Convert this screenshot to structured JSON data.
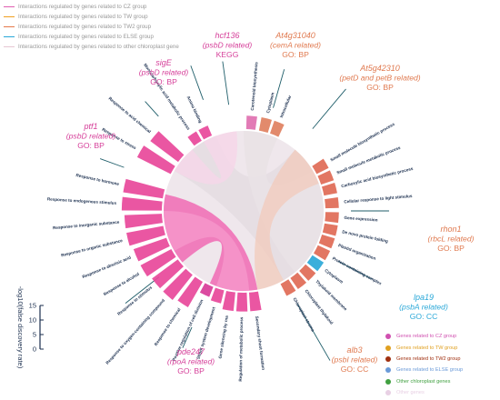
{
  "legend_top": [
    {
      "label": "Interactions regulated by genes related to CZ group",
      "color": "#e05fb0"
    },
    {
      "label": "Interactions regulated by genes related to TW group",
      "color": "#f0a020"
    },
    {
      "label": "Interactions regulated by genes related to TW2 group",
      "color": "#e5784a"
    },
    {
      "label": "Interactions regulated by genes related to ELSE group",
      "color": "#2aa8d8"
    },
    {
      "label": "Interactions regulated by genes related to other chloroplast gene",
      "color": "#e6c6d2"
    }
  ],
  "legend_br": [
    {
      "label": "Genes related to CZ group",
      "color": "#d050b0"
    },
    {
      "label": "Genes related to TW group",
      "color": "#e0a020"
    },
    {
      "label": "Genes related to TW2 group",
      "color": "#a03010"
    },
    {
      "label": "Genes related to ELSE group",
      "color": "#6a9ad8"
    },
    {
      "label": "Other chloroplast genes",
      "color": "#40a040"
    },
    {
      "label": "Other genes",
      "color": "#e8d0e4"
    }
  ],
  "scale": {
    "label": "-log10(false discovery rate)",
    "ticks": [
      "15",
      "10",
      "5",
      "0"
    ]
  },
  "genes": [
    {
      "name": "hcf136",
      "lines": [
        "(psbD related)",
        "KEGG"
      ],
      "color": "#d6409a"
    },
    {
      "name": "At4g31040",
      "lines": [
        "(cemA related)",
        "GO: BP"
      ],
      "color": "#e07a50"
    },
    {
      "name": "At5g42310",
      "lines": [
        "(petD and petB related)",
        "GO: BP"
      ],
      "color": "#e07a50"
    },
    {
      "name": "sigE",
      "lines": [
        "(psbD related)",
        "GO: BP"
      ],
      "color": "#d6409a"
    },
    {
      "name": "ptf1",
      "lines": [
        "(psbD related)",
        "GO: BP"
      ],
      "color": "#d6409a"
    },
    {
      "name": "rhon1",
      "lines": [
        "(rbcL related)",
        "GO: BP"
      ],
      "color": "#e07a50"
    },
    {
      "name": "lpa19",
      "lines": [
        "(psbA related)",
        "GO: CC"
      ],
      "color": "#2aa8d8"
    },
    {
      "name": "alb3",
      "lines": [
        "(psbI related)",
        "GO: CC"
      ],
      "color": "#e07a50"
    },
    {
      "name": "pde247",
      "lines": [
        "(rpoA related)",
        "GO: BP"
      ],
      "color": "#d6409a"
    }
  ],
  "terms": [
    {
      "label": "Response to hormone",
      "value": 13,
      "color": "#e8489a"
    },
    {
      "label": "Response to endogenous stimulus",
      "value": 13,
      "color": "#e8489a"
    },
    {
      "label": "Response to inorganic substance",
      "value": 12,
      "color": "#e8489a"
    },
    {
      "label": "Response to organic substance",
      "value": 12,
      "color": "#e8489a"
    },
    {
      "label": "Response to abscisic acid",
      "value": 11,
      "color": "#e8489a"
    },
    {
      "label": "Response to alcohol",
      "value": 11,
      "color": "#e8489a"
    },
    {
      "label": "Response to stimulus",
      "value": 10,
      "color": "#e8489a"
    },
    {
      "label": "Response to oxygen-containing compound",
      "value": 10,
      "color": "#e8489a"
    },
    {
      "label": "Response to chemical",
      "value": 9,
      "color": "#e8489a"
    },
    {
      "label": "Positive regulation of cell division",
      "value": 2,
      "color": "#d83c98"
    },
    {
      "label": "Shoot system development",
      "value": 3,
      "color": "#e8489a"
    },
    {
      "label": "Gene silencing by rna",
      "value": 5,
      "color": "#e8489a"
    },
    {
      "label": "Regulation of metabolic process",
      "value": 5,
      "color": "#e8489a"
    },
    {
      "label": "Secondary shoot formation",
      "value": 5,
      "color": "#e8489a"
    },
    {
      "label": "Chloroplast stroma",
      "value": 3,
      "color": "#e06a55"
    },
    {
      "label": "Chloroplast thylakoid",
      "value": 3,
      "color": "#e06a55"
    },
    {
      "label": "Thylakoid membrane",
      "value": 3,
      "color": "#e06a55"
    },
    {
      "label": "Cytoplasm",
      "value": 3,
      "color": "#2aa8d8"
    },
    {
      "label": "Protein-containing complex",
      "value": 3,
      "color": "#e06a55"
    },
    {
      "label": "Plastid organization",
      "value": 3,
      "color": "#e06a55"
    },
    {
      "label": "De novo protein folding",
      "value": 3,
      "color": "#e06a55"
    },
    {
      "label": "Gene expression",
      "value": 3,
      "color": "#e06a55"
    },
    {
      "label": "Cellular response to light stimulus",
      "value": 3,
      "color": "#e06a55"
    },
    {
      "label": "Carboxylic acid biosynthetic process",
      "value": 3,
      "color": "#e06a55"
    },
    {
      "label": "Small molecule metabolic process",
      "value": 3,
      "color": "#e06a55"
    },
    {
      "label": "Small molecule biosynthetic process",
      "value": 3,
      "color": "#e06a55"
    },
    {
      "label": "Intracellular",
      "value": 3,
      "color": "#e08060"
    },
    {
      "label": "Cytoplasm",
      "value": 3,
      "color": "#e08060"
    },
    {
      "label": "Carotenoid biosynthesis",
      "value": 3,
      "color": "#e070b0"
    },
    {
      "label": "Amino binding",
      "value": 2,
      "color": "#e8489a"
    },
    {
      "label": "Monocarboxylic acid metabolic process",
      "value": 2,
      "color": "#e8489a"
    },
    {
      "label": "Response to acid chemical",
      "value": 11,
      "color": "#e8489a"
    },
    {
      "label": "Response to stress",
      "value": 12,
      "color": "#e8489a"
    }
  ]
}
